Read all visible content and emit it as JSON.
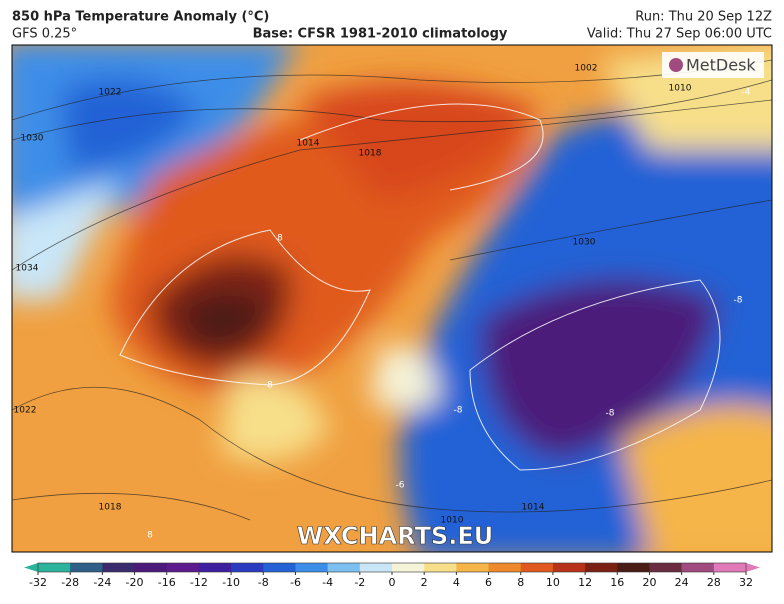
{
  "header": {
    "title": "850 hPa Temperature Anomaly (°C)",
    "model": "GFS 0.25°",
    "base": "Base: CFSR 1981-2010 climatology",
    "run": "Run: Thu 20 Sep 12Z",
    "valid": "Valid: Thu 27 Sep 06:00 UTC"
  },
  "map": {
    "logo": "MetDesk",
    "watermark": "WXCHARTS.EU",
    "isobar_labels": [
      "1002",
      "1010",
      "1030",
      "1022",
      "1014",
      "1018",
      "1034",
      "1030",
      "1022",
      "1018",
      "1014",
      "1010"
    ],
    "anomaly_labels": [
      "8",
      "8",
      "-8",
      "-4",
      "-8",
      "-6",
      "8",
      "-8"
    ]
  },
  "colorbar": {
    "ticks": [
      -32,
      -28,
      -24,
      -20,
      -16,
      -12,
      -10,
      -8,
      -6,
      -4,
      -2,
      0,
      2,
      4,
      6,
      8,
      10,
      12,
      16,
      20,
      24,
      28,
      32
    ],
    "colors": [
      "#2bb39b",
      "#2d5f88",
      "#3a2a6e",
      "#4b1a7a",
      "#5c1a8c",
      "#3d1fa0",
      "#2a3bc0",
      "#2462d6",
      "#3c8ee8",
      "#7cc0f2",
      "#c9e6f8",
      "#f5f3d8",
      "#f7df8a",
      "#f5b548",
      "#ef8a2c",
      "#e05a1f",
      "#b8321a",
      "#7a2114",
      "#4a1c16",
      "#6a2c40",
      "#a04a80",
      "#e07ab8"
    ]
  }
}
